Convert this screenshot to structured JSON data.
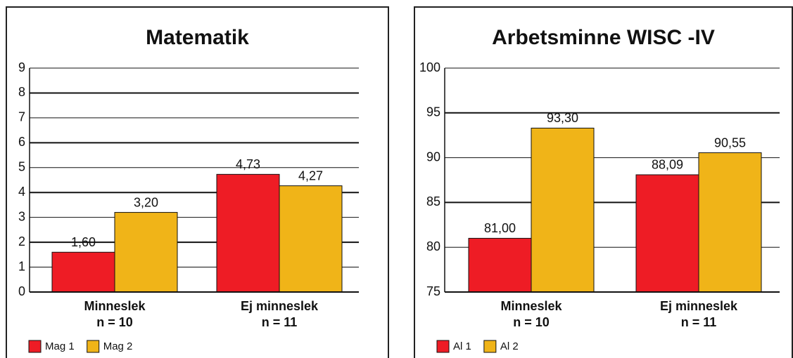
{
  "chart_data": [
    {
      "type": "bar",
      "title": "Matematik",
      "categories": [
        "Minneslek",
        "Ej minneslek"
      ],
      "category_notes": [
        "n = 10",
        "n = 11"
      ],
      "series": [
        {
          "name": "Mag 1",
          "color": "#ee1c25",
          "values": [
            1.6,
            4.73
          ],
          "value_labels": [
            "1,60",
            "4,73"
          ]
        },
        {
          "name": "Mag 2",
          "color": "#f0b418",
          "values": [
            3.2,
            4.27
          ],
          "value_labels": [
            "3,20",
            "4,27"
          ]
        }
      ],
      "ylim": [
        0,
        9
      ],
      "yticks": [
        0,
        1,
        2,
        3,
        4,
        5,
        6,
        7,
        8,
        9
      ],
      "grid": true,
      "legend": "bottom-left"
    },
    {
      "type": "bar",
      "title": "Arbetsminne WISC -IV",
      "categories": [
        "Minneslek",
        "Ej minneslek"
      ],
      "category_notes": [
        "n = 10",
        "n = 11"
      ],
      "series": [
        {
          "name": "Al 1",
          "color": "#ee1c25",
          "values": [
            81.0,
            88.09
          ],
          "value_labels": [
            "81,00",
            "88,09"
          ]
        },
        {
          "name": "Al 2",
          "color": "#f0b418",
          "values": [
            93.3,
            90.55
          ],
          "value_labels": [
            "93,30",
            "90,55"
          ]
        }
      ],
      "ylim": [
        75,
        100
      ],
      "yticks": [
        75,
        80,
        85,
        90,
        95,
        100
      ],
      "grid": true,
      "legend": "bottom-left"
    }
  ]
}
